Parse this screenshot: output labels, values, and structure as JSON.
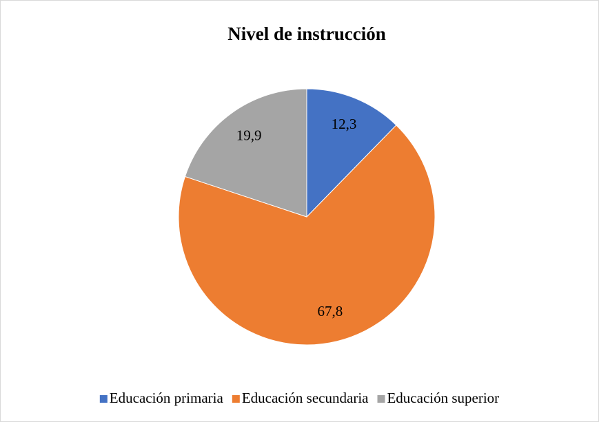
{
  "chart_data": {
    "type": "pie",
    "title": "Nivel de instrucción",
    "categories": [
      "Educación primaria",
      "Educación secundaria",
      "Educación superior"
    ],
    "values": [
      12.3,
      67.8,
      19.9
    ],
    "value_labels": [
      "12,3",
      "67,8",
      "19,9"
    ],
    "colors": [
      "#4472c4",
      "#ed7d31",
      "#a5a5a5"
    ],
    "legend": "bottom"
  }
}
